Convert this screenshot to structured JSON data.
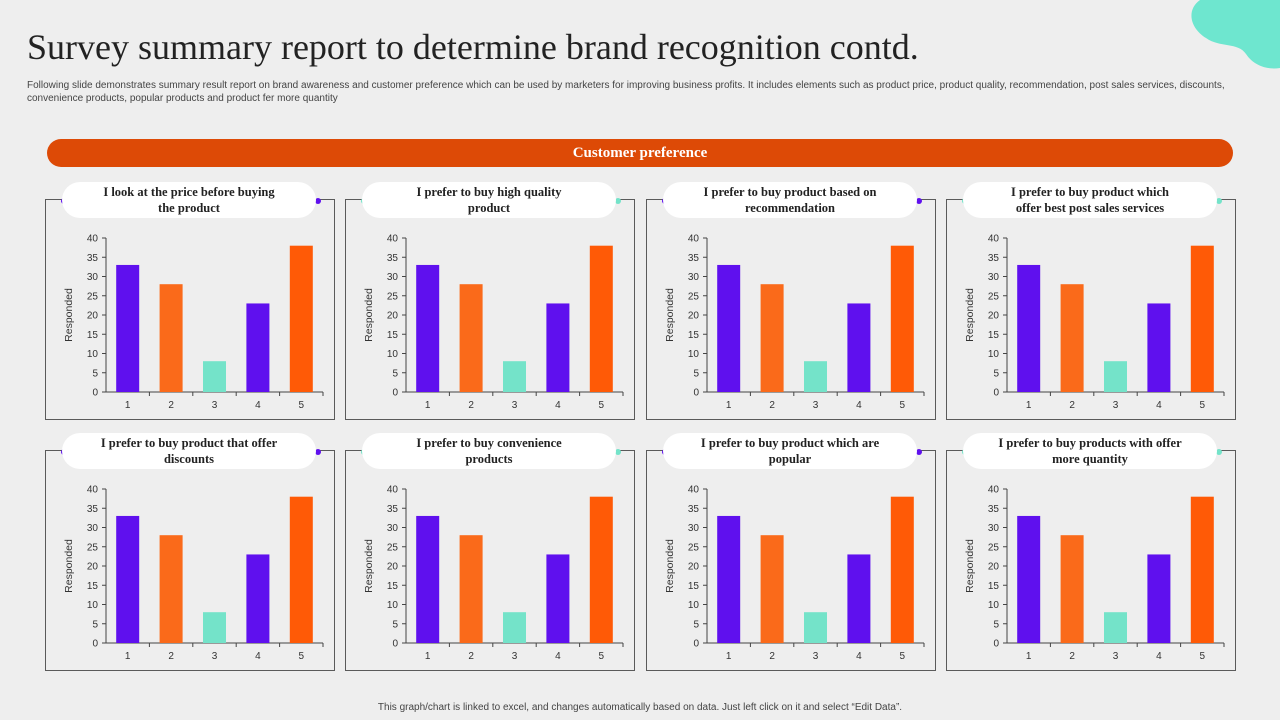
{
  "title": "Survey summary report to determine brand recognition contd.",
  "subtitle": "Following slide demonstrates summary result report on brand awareness and customer preference which can be used by marketers for improving business profits. It includes elements such as product price, product quality, recommendation, post sales services, discounts, convenience products, popular products and product fer more quantity",
  "banner": "Customer preference",
  "footer": "This graph/chart is linked to excel, and changes automatically based on data. Just left click on it and select “Edit Data”.",
  "colors": {
    "bar_purple": "#5f10ee",
    "bar_orange": "#fa6a1a",
    "bar_teal": "#74e3c9",
    "bar_deep_orange": "#ff5a06",
    "banner": "#dd4a06",
    "dot_purple": "#5f10ee",
    "dot_teal": "#74e3c9"
  },
  "chart_data": [
    {
      "type": "bar",
      "title": "I look at the price before buying the product",
      "ylabel": "Responded",
      "categories": [
        "1",
        "2",
        "3",
        "4",
        "5"
      ],
      "values": [
        33,
        28,
        8,
        23,
        38
      ],
      "ylim": [
        0,
        40
      ],
      "yticks": [
        0,
        5,
        10,
        15,
        20,
        25,
        30,
        35,
        40
      ],
      "dot": "purple"
    },
    {
      "type": "bar",
      "title": "I prefer to buy high quality product",
      "ylabel": "Responded",
      "categories": [
        "1",
        "2",
        "3",
        "4",
        "5"
      ],
      "values": [
        33,
        28,
        8,
        23,
        38
      ],
      "ylim": [
        0,
        40
      ],
      "yticks": [
        0,
        5,
        10,
        15,
        20,
        25,
        30,
        35,
        40
      ],
      "dot": "teal"
    },
    {
      "type": "bar",
      "title": "I prefer to buy product based on recommendation",
      "ylabel": "Responded",
      "categories": [
        "1",
        "2",
        "3",
        "4",
        "5"
      ],
      "values": [
        33,
        28,
        8,
        23,
        38
      ],
      "ylim": [
        0,
        40
      ],
      "yticks": [
        0,
        5,
        10,
        15,
        20,
        25,
        30,
        35,
        40
      ],
      "dot": "purple"
    },
    {
      "type": "bar",
      "title": "I prefer to buy product which offer best post sales services",
      "ylabel": "Responded",
      "categories": [
        "1",
        "2",
        "3",
        "4",
        "5"
      ],
      "values": [
        33,
        28,
        8,
        23,
        38
      ],
      "ylim": [
        0,
        40
      ],
      "yticks": [
        0,
        5,
        10,
        15,
        20,
        25,
        30,
        35,
        40
      ],
      "dot": "teal"
    },
    {
      "type": "bar",
      "title": "I prefer to buy product that offer discounts",
      "ylabel": "Responded",
      "categories": [
        "1",
        "2",
        "3",
        "4",
        "5"
      ],
      "values": [
        33,
        28,
        8,
        23,
        38
      ],
      "ylim": [
        0,
        40
      ],
      "yticks": [
        0,
        5,
        10,
        15,
        20,
        25,
        30,
        35,
        40
      ],
      "dot": "purple"
    },
    {
      "type": "bar",
      "title": "I prefer to buy convenience products",
      "ylabel": "Responded",
      "categories": [
        "1",
        "2",
        "3",
        "4",
        "5"
      ],
      "values": [
        33,
        28,
        8,
        23,
        38
      ],
      "ylim": [
        0,
        40
      ],
      "yticks": [
        0,
        5,
        10,
        15,
        20,
        25,
        30,
        35,
        40
      ],
      "dot": "teal"
    },
    {
      "type": "bar",
      "title": "I prefer to buy product which are popular",
      "ylabel": "Responded",
      "categories": [
        "1",
        "2",
        "3",
        "4",
        "5"
      ],
      "values": [
        33,
        28,
        8,
        23,
        38
      ],
      "ylim": [
        0,
        40
      ],
      "yticks": [
        0,
        5,
        10,
        15,
        20,
        25,
        30,
        35,
        40
      ],
      "dot": "purple"
    },
    {
      "type": "bar",
      "title": "I prefer to buy products with offer more quantity",
      "ylabel": "Responded",
      "categories": [
        "1",
        "2",
        "3",
        "4",
        "5"
      ],
      "values": [
        33,
        28,
        8,
        23,
        38
      ],
      "ylim": [
        0,
        40
      ],
      "yticks": [
        0,
        5,
        10,
        15,
        20,
        25,
        30,
        35,
        40
      ],
      "dot": "teal"
    }
  ]
}
